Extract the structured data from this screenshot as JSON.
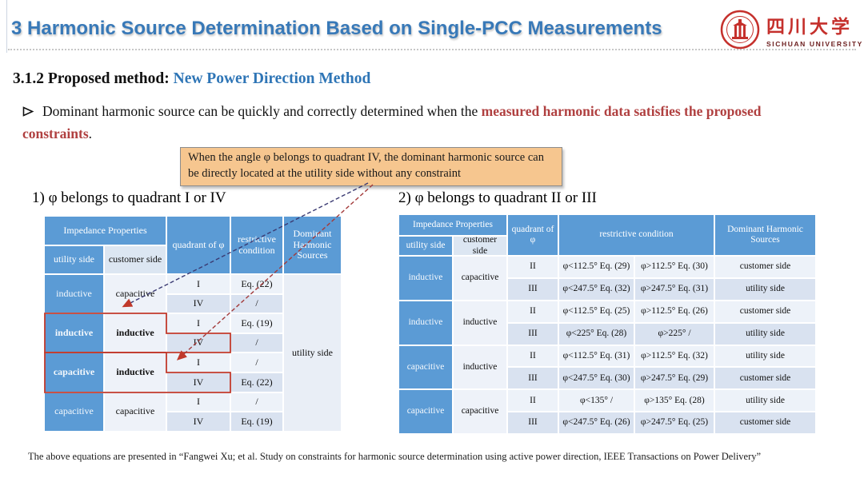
{
  "header": {
    "title": "3 Harmonic Source Determination Based on Single-PCC Measurements",
    "logo": {
      "seal_icon": "sichuan-university-seal",
      "chinese": "四川大学",
      "english": "SICHUAN UNIVERSITY"
    }
  },
  "subtitle": {
    "prefix": "3.1.2 Proposed method: ",
    "method": "New Power Direction Method"
  },
  "bullet": {
    "marker_icon": "arrowhead-bullet",
    "text_black": "Dominant harmonic source can be quickly and correctly determined when the ",
    "text_red": "measured harmonic data satisfies the proposed constraints",
    "period": "."
  },
  "callout": {
    "text": "When the angle φ belongs to quadrant IV, the dominant harmonic source can be directly located at the utility side without any constraint"
  },
  "sections": [
    {
      "label": "1) φ belongs to quadrant I or IV"
    },
    {
      "label": "2) φ belongs to quadrant II or III"
    }
  ],
  "table1": {
    "headers": {
      "impedance": "Impedance Properties",
      "utility": "utility side",
      "customer": "customer side",
      "quadrant": "quadrant of φ",
      "condition": "restrictive condition",
      "dominant": "Dominant Harmonic Sources"
    },
    "groups": [
      {
        "utility": "inductive",
        "customer": "capacitive",
        "bold": false,
        "rows": [
          {
            "quadrant": "I",
            "condition": "Eq. (22)"
          },
          {
            "quadrant": "IV",
            "condition": "/"
          }
        ]
      },
      {
        "utility": "inductive",
        "customer": "inductive",
        "bold": true,
        "rows": [
          {
            "quadrant": "I",
            "condition": "Eq. (19)"
          },
          {
            "quadrant": "IV",
            "condition": "/"
          }
        ]
      },
      {
        "utility": "capacitive",
        "customer": "inductive",
        "bold": true,
        "rows": [
          {
            "quadrant": "I",
            "condition": "/"
          },
          {
            "quadrant": "IV",
            "condition": "Eq. (22)"
          }
        ]
      },
      {
        "utility": "capacitive",
        "customer": "capacitive",
        "bold": false,
        "rows": [
          {
            "quadrant": "I",
            "condition": "/"
          },
          {
            "quadrant": "IV",
            "condition": "Eq. (19)"
          }
        ]
      }
    ],
    "dominant": "utility side"
  },
  "table2": {
    "headers": {
      "impedance": "Impedance Properties",
      "utility": "utility side",
      "customer": "customer side",
      "quadrant": "quadrant of φ",
      "condition": "restrictive condition",
      "dominant": "Dominant Harmonic Sources"
    },
    "groups": [
      {
        "utility": "inductive",
        "customer": "capacitive",
        "rows": [
          {
            "quadrant": "II",
            "cond_a": "φ<112.5°  Eq. (29)",
            "cond_b": "φ>112.5°  Eq. (30)",
            "dominant": "customer side"
          },
          {
            "quadrant": "III",
            "cond_a": "φ<247.5°  Eq. (32)",
            "cond_b": "φ>247.5°  Eq. (31)",
            "dominant": "utility side"
          }
        ]
      },
      {
        "utility": "inductive",
        "customer": "inductive",
        "rows": [
          {
            "quadrant": "II",
            "cond_a": "φ<112.5°  Eq. (25)",
            "cond_b": "φ>112.5°  Eq. (26)",
            "dominant": "customer side"
          },
          {
            "quadrant": "III",
            "cond_a": "φ<225°  Eq. (28)",
            "cond_b": "φ>225°  /",
            "dominant": "utility side"
          }
        ]
      },
      {
        "utility": "capacitive",
        "customer": "inductive",
        "rows": [
          {
            "quadrant": "II",
            "cond_a": "φ<112.5°  Eq. (31)",
            "cond_b": "φ>112.5°  Eq. (32)",
            "dominant": "utility side"
          },
          {
            "quadrant": "III",
            "cond_a": "φ<247.5°  Eq. (30)",
            "cond_b": "φ>247.5°  Eq. (29)",
            "dominant": "customer side"
          }
        ]
      },
      {
        "utility": "capacitive",
        "customer": "capacitive",
        "rows": [
          {
            "quadrant": "II",
            "cond_a": "φ<135°  /",
            "cond_b": "φ>135°  Eq. (28)",
            "dominant": "utility side"
          },
          {
            "quadrant": "III",
            "cond_a": "φ<247.5°  Eq. (26)",
            "cond_b": "φ>247.5°  Eq. (25)",
            "dominant": "customer side"
          }
        ]
      }
    ]
  },
  "footer": {
    "text": "The above equations are presented in “Fangwei Xu; et al.  Study on constraints for harmonic source determination using active power direction, IEEE Transactions on Power Delivery”"
  },
  "colors": {
    "title_blue": "#3879b8",
    "method_blue": "#2e75b6",
    "text_red": "#b04040",
    "header_blue": "#5b9bd5",
    "row_light": "#edf2f9",
    "row_dark": "#d9e2f0",
    "callout_bg": "#f6c68f",
    "accent_red": "#c0392b",
    "navy_dash": "#3a3a72",
    "logo_red": "#c5302c"
  }
}
